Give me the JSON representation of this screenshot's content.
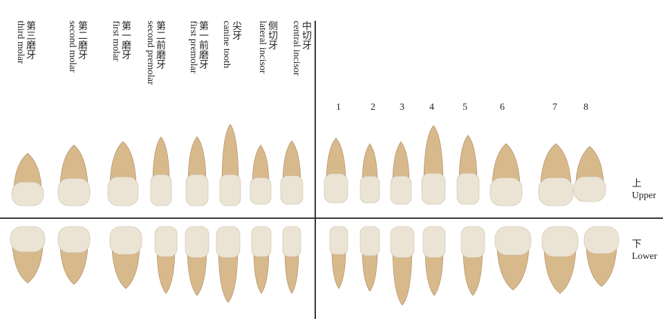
{
  "tooth_labels": [
    {
      "zh": "第三磨牙",
      "en": "third molar"
    },
    {
      "zh": "第二磨牙",
      "en": "second molar"
    },
    {
      "zh": "第一磨牙",
      "en": "first molar"
    },
    {
      "zh": "第二前磨牙",
      "en": "second premolar"
    },
    {
      "zh": "第一前磨牙",
      "en": "first premolar"
    },
    {
      "zh": "尖牙",
      "en": "canine tooth"
    },
    {
      "zh": "侧切牙",
      "en": "lateral incisor"
    },
    {
      "zh": "中切牙",
      "en": "central incisor"
    }
  ],
  "numbers": [
    "1",
    "2",
    "3",
    "4",
    "5",
    "6",
    "7",
    "8"
  ],
  "upper": {
    "zh": "上",
    "en": "Upper"
  },
  "lower": {
    "zh": "下",
    "en": "Lower"
  },
  "colors": {
    "crown": "#ebe3d3",
    "root": "#d8b98c",
    "shade": "#a8865c"
  }
}
